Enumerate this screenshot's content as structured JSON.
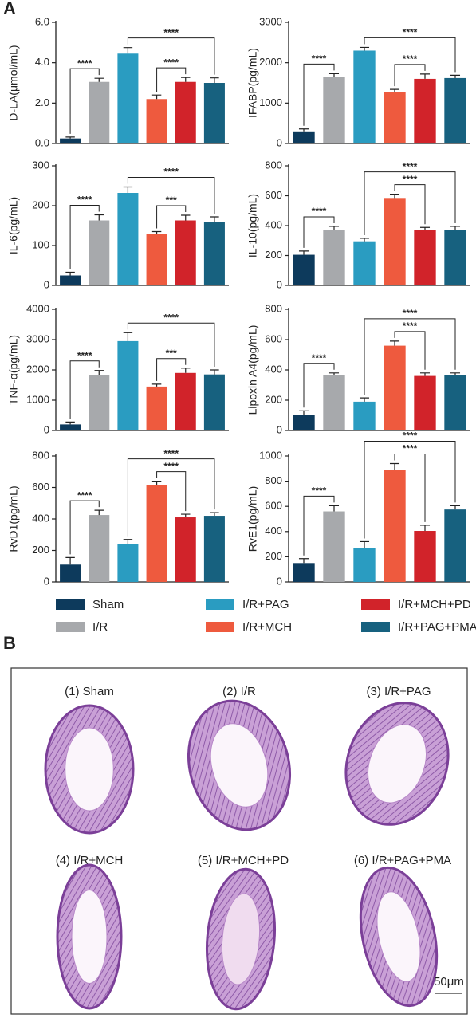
{
  "panel_a_label": "A",
  "chart_data": [
    {
      "type": "bar",
      "ylabel": "D-LA(μmol/mL)",
      "ylim": [
        0,
        6
      ],
      "yticks": [
        {
          "value": 0,
          "label": "0.0"
        },
        {
          "value": 2,
          "label": "2.0"
        },
        {
          "value": 4,
          "label": "4.0"
        },
        {
          "value": 6,
          "label": "6.0"
        }
      ],
      "series": [
        {
          "name": "Sham",
          "color": "#0d3a5c",
          "values": [
            0.25
          ],
          "errors": [
            0.07
          ]
        },
        {
          "name": "I/R",
          "color": "#a7a9ac",
          "values": [
            3.05
          ],
          "errors": [
            0.18
          ]
        },
        {
          "name": "I/R+PAG",
          "color": "#2a9cc1",
          "values": [
            4.45
          ],
          "errors": [
            0.3
          ]
        },
        {
          "name": "I/R+MCH",
          "color": "#ee5a3e",
          "values": [
            2.2
          ],
          "errors": [
            0.2
          ]
        },
        {
          "name": "I/R+MCH+PD",
          "color": "#d1232a",
          "values": [
            3.05
          ],
          "errors": [
            0.22
          ]
        },
        {
          "name": "I/R+PAG+PMA",
          "color": "#17617f",
          "values": [
            3.0
          ],
          "errors": [
            0.25
          ]
        }
      ],
      "annotations": [
        {
          "groups": [
            0,
            1
          ],
          "label": "****"
        },
        {
          "groups": [
            3,
            4
          ],
          "label": "****"
        },
        {
          "groups": [
            2,
            5
          ],
          "label": "****"
        }
      ]
    },
    {
      "type": "bar",
      "ylabel": "IFABP(pg/mL)",
      "ylim": [
        0,
        3000
      ],
      "yticks": [
        0,
        1000,
        2000,
        3000
      ],
      "series": [
        {
          "name": "Sham",
          "color": "#0d3a5c",
          "values": [
            300
          ],
          "errors": [
            60
          ]
        },
        {
          "name": "I/R",
          "color": "#a7a9ac",
          "values": [
            1650
          ],
          "errors": [
            80
          ]
        },
        {
          "name": "I/R+PAG",
          "color": "#2a9cc1",
          "values": [
            2300
          ],
          "errors": [
            80
          ]
        },
        {
          "name": "I/R+MCH",
          "color": "#ee5a3e",
          "values": [
            1270
          ],
          "errors": [
            70
          ]
        },
        {
          "name": "I/R+MCH+PD",
          "color": "#d1232a",
          "values": [
            1600
          ],
          "errors": [
            120
          ]
        },
        {
          "name": "I/R+PAG+PMA",
          "color": "#17617f",
          "values": [
            1620
          ],
          "errors": [
            70
          ]
        }
      ],
      "annotations": [
        {
          "groups": [
            0,
            1
          ],
          "label": "****"
        },
        {
          "groups": [
            3,
            4
          ],
          "label": "****"
        },
        {
          "groups": [
            2,
            5
          ],
          "label": "****"
        }
      ]
    },
    {
      "type": "bar",
      "ylabel": "IL-6(pg/mL)",
      "ylim": [
        0,
        300
      ],
      "yticks": [
        0,
        100,
        200,
        300
      ],
      "series": [
        {
          "name": "Sham",
          "color": "#0d3a5c",
          "values": [
            25
          ],
          "errors": [
            8
          ]
        },
        {
          "name": "I/R",
          "color": "#a7a9ac",
          "values": [
            163
          ],
          "errors": [
            14
          ]
        },
        {
          "name": "I/R+PAG",
          "color": "#2a9cc1",
          "values": [
            232
          ],
          "errors": [
            15
          ]
        },
        {
          "name": "I/R+MCH",
          "color": "#ee5a3e",
          "values": [
            130
          ],
          "errors": [
            5
          ]
        },
        {
          "name": "I/R+MCH+PD",
          "color": "#d1232a",
          "values": [
            163
          ],
          "errors": [
            13
          ]
        },
        {
          "name": "I/R+PAG+PMA",
          "color": "#17617f",
          "values": [
            160
          ],
          "errors": [
            12
          ]
        }
      ],
      "annotations": [
        {
          "groups": [
            0,
            1
          ],
          "label": "****"
        },
        {
          "groups": [
            3,
            4
          ],
          "label": "***"
        },
        {
          "groups": [
            2,
            5
          ],
          "label": "****"
        }
      ]
    },
    {
      "type": "bar",
      "ylabel": "IL-10(pg/mL)",
      "ylim": [
        0,
        800
      ],
      "yticks": [
        0,
        200,
        400,
        600,
        800
      ],
      "series": [
        {
          "name": "Sham",
          "color": "#0d3a5c",
          "values": [
            205
          ],
          "errors": [
            25
          ]
        },
        {
          "name": "I/R",
          "color": "#a7a9ac",
          "values": [
            370
          ],
          "errors": [
            25
          ]
        },
        {
          "name": "I/R+PAG",
          "color": "#2a9cc1",
          "values": [
            295
          ],
          "errors": [
            20
          ]
        },
        {
          "name": "I/R+MCH",
          "color": "#ee5a3e",
          "values": [
            585
          ],
          "errors": [
            25
          ]
        },
        {
          "name": "I/R+MCH+PD",
          "color": "#d1232a",
          "values": [
            370
          ],
          "errors": [
            18
          ]
        },
        {
          "name": "I/R+PAG+PMA",
          "color": "#17617f",
          "values": [
            370
          ],
          "errors": [
            25
          ]
        }
      ],
      "annotations": [
        {
          "groups": [
            0,
            1
          ],
          "label": "****"
        },
        {
          "groups": [
            3,
            4
          ],
          "label": "****"
        },
        {
          "groups": [
            2,
            5
          ],
          "label": "****"
        }
      ]
    },
    {
      "type": "bar",
      "ylabel": "TNF-α(pg/mL)",
      "ylim": [
        0,
        4000
      ],
      "yticks": [
        0,
        1000,
        2000,
        3000,
        4000
      ],
      "series": [
        {
          "name": "Sham",
          "color": "#0d3a5c",
          "values": [
            200
          ],
          "errors": [
            80
          ]
        },
        {
          "name": "I/R",
          "color": "#a7a9ac",
          "values": [
            1820
          ],
          "errors": [
            160
          ]
        },
        {
          "name": "I/R+PAG",
          "color": "#2a9cc1",
          "values": [
            2950
          ],
          "errors": [
            280
          ]
        },
        {
          "name": "I/R+MCH",
          "color": "#ee5a3e",
          "values": [
            1450
          ],
          "errors": [
            80
          ]
        },
        {
          "name": "I/R+MCH+PD",
          "color": "#d1232a",
          "values": [
            1900
          ],
          "errors": [
            160
          ]
        },
        {
          "name": "I/R+PAG+PMA",
          "color": "#17617f",
          "values": [
            1850
          ],
          "errors": [
            150
          ]
        }
      ],
      "annotations": [
        {
          "groups": [
            0,
            1
          ],
          "label": "****"
        },
        {
          "groups": [
            3,
            4
          ],
          "label": "***"
        },
        {
          "groups": [
            2,
            5
          ],
          "label": "****"
        }
      ]
    },
    {
      "type": "bar",
      "ylabel": "Lipoxin A4(pg/mL)",
      "ylim": [
        0,
        800
      ],
      "yticks": [
        0,
        200,
        400,
        600,
        800
      ],
      "series": [
        {
          "name": "Sham",
          "color": "#0d3a5c",
          "values": [
            100
          ],
          "errors": [
            30
          ]
        },
        {
          "name": "I/R",
          "color": "#a7a9ac",
          "values": [
            365
          ],
          "errors": [
            15
          ]
        },
        {
          "name": "I/R+PAG",
          "color": "#2a9cc1",
          "values": [
            190
          ],
          "errors": [
            25
          ]
        },
        {
          "name": "I/R+MCH",
          "color": "#ee5a3e",
          "values": [
            560
          ],
          "errors": [
            30
          ]
        },
        {
          "name": "I/R+MCH+PD",
          "color": "#d1232a",
          "values": [
            360
          ],
          "errors": [
            20
          ]
        },
        {
          "name": "I/R+PAG+PMA",
          "color": "#17617f",
          "values": [
            365
          ],
          "errors": [
            15
          ]
        }
      ],
      "annotations": [
        {
          "groups": [
            0,
            1
          ],
          "label": "****"
        },
        {
          "groups": [
            3,
            4
          ],
          "label": "****"
        },
        {
          "groups": [
            2,
            5
          ],
          "label": "****"
        }
      ]
    },
    {
      "type": "bar",
      "ylabel": "RvD1(pg/mL)",
      "ylim": [
        0,
        800
      ],
      "yticks": [
        0,
        200,
        400,
        600,
        800
      ],
      "series": [
        {
          "name": "Sham",
          "color": "#0d3a5c",
          "values": [
            110
          ],
          "errors": [
            45
          ]
        },
        {
          "name": "I/R",
          "color": "#a7a9ac",
          "values": [
            425
          ],
          "errors": [
            30
          ]
        },
        {
          "name": "I/R+PAG",
          "color": "#2a9cc1",
          "values": [
            240
          ],
          "errors": [
            30
          ]
        },
        {
          "name": "I/R+MCH",
          "color": "#ee5a3e",
          "values": [
            615
          ],
          "errors": [
            25
          ]
        },
        {
          "name": "I/R+MCH+PD",
          "color": "#d1232a",
          "values": [
            410
          ],
          "errors": [
            20
          ]
        },
        {
          "name": "I/R+PAG+PMA",
          "color": "#17617f",
          "values": [
            420
          ],
          "errors": [
            20
          ]
        }
      ],
      "annotations": [
        {
          "groups": [
            0,
            1
          ],
          "label": "****"
        },
        {
          "groups": [
            3,
            4
          ],
          "label": "****"
        },
        {
          "groups": [
            2,
            5
          ],
          "label": "****"
        }
      ]
    },
    {
      "type": "bar",
      "ylabel": "RvE1(pg/mL)",
      "ylim": [
        0,
        1000
      ],
      "yticks": [
        0,
        200,
        400,
        600,
        800,
        1000
      ],
      "series": [
        {
          "name": "Sham",
          "color": "#0d3a5c",
          "values": [
            150
          ],
          "errors": [
            35
          ]
        },
        {
          "name": "I/R",
          "color": "#a7a9ac",
          "values": [
            560
          ],
          "errors": [
            45
          ]
        },
        {
          "name": "I/R+PAG",
          "color": "#2a9cc1",
          "values": [
            270
          ],
          "errors": [
            50
          ]
        },
        {
          "name": "I/R+MCH",
          "color": "#ee5a3e",
          "values": [
            890
          ],
          "errors": [
            50
          ]
        },
        {
          "name": "I/R+MCH+PD",
          "color": "#d1232a",
          "values": [
            405
          ],
          "errors": [
            45
          ]
        },
        {
          "name": "I/R+PAG+PMA",
          "color": "#17617f",
          "values": [
            575
          ],
          "errors": [
            30
          ]
        }
      ],
      "annotations": [
        {
          "groups": [
            0,
            1
          ],
          "label": "****"
        },
        {
          "groups": [
            3,
            4
          ],
          "label": "****"
        },
        {
          "groups": [
            2,
            5
          ],
          "label": "****"
        }
      ]
    }
  ],
  "panel_b": {
    "label": "B",
    "images": [
      {
        "caption": "(1) Sham"
      },
      {
        "caption": "(2) I/R"
      },
      {
        "caption": "(3) I/R+PAG"
      },
      {
        "caption": "(4) I/R+MCH"
      },
      {
        "caption": "(5) I/R+MCH+PD"
      },
      {
        "caption": "(6) I/R+PAG+PMA"
      }
    ],
    "scale_bar": "50μm"
  }
}
